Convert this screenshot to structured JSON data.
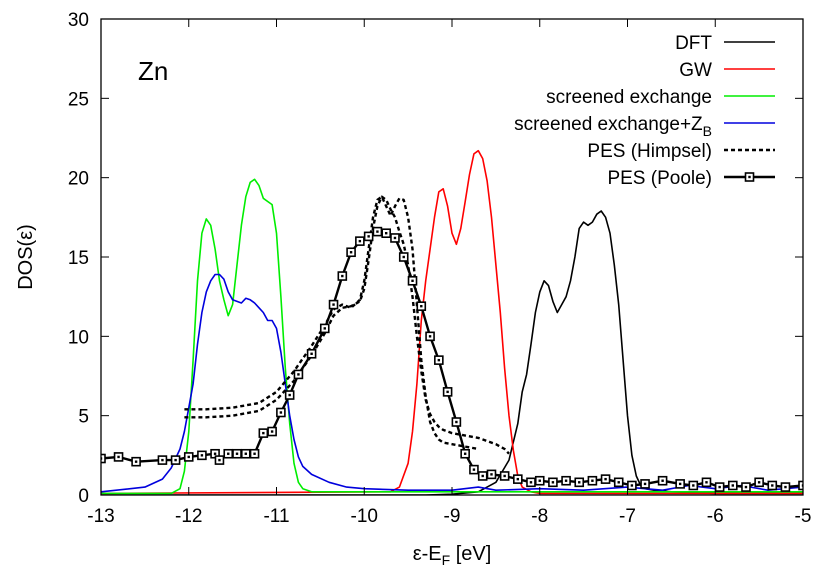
{
  "chart_data": {
    "type": "line",
    "annotation": "Zn",
    "xlabel": "ε-E",
    "xlabel_sub": "F",
    "xlabel_unit": " [eV]",
    "ylabel": "DOS(ε)",
    "xlim": [
      -13,
      -5
    ],
    "ylim": [
      0,
      30
    ],
    "xticks": [
      "-13",
      "-12",
      "-11",
      "-10",
      "-9",
      "-8",
      "-7",
      "-6",
      "-5"
    ],
    "yticks": [
      "0",
      "5",
      "10",
      "15",
      "20",
      "25",
      "30"
    ],
    "grid": false,
    "legend_position": "top-right",
    "series": [
      {
        "name": "DFT",
        "color": "#000000",
        "style": "solid",
        "x": [
          -13,
          -9.3,
          -9.0,
          -8.7,
          -8.5,
          -8.35,
          -8.25,
          -8.2,
          -8.15,
          -8.1,
          -8.05,
          -8.0,
          -7.95,
          -7.9,
          -7.85,
          -7.8,
          -7.75,
          -7.7,
          -7.65,
          -7.6,
          -7.55,
          -7.5,
          -7.45,
          -7.4,
          -7.35,
          -7.3,
          -7.25,
          -7.2,
          -7.15,
          -7.1,
          -7.05,
          -7.0,
          -6.95,
          -6.9,
          -6.85,
          -6.8,
          -6.7,
          -6.5,
          -6.0,
          -5.5,
          -5.0
        ],
        "y": [
          0,
          0,
          0.05,
          0.2,
          0.8,
          2.2,
          4.5,
          6.5,
          7.6,
          9.5,
          11.5,
          12.8,
          13.5,
          13.2,
          12.2,
          11.5,
          12.0,
          12.5,
          13.5,
          15.0,
          16.8,
          17.2,
          17.0,
          17.2,
          17.7,
          17.9,
          17.5,
          16.5,
          14.5,
          12.0,
          8.5,
          5.0,
          2.5,
          1.2,
          0.6,
          0.4,
          0.3,
          0.2,
          0.1,
          0.1,
          0.1
        ]
      },
      {
        "name": "GW",
        "color": "#ff0000",
        "style": "solid",
        "x": [
          -13,
          -9.7,
          -9.6,
          -9.5,
          -9.45,
          -9.4,
          -9.35,
          -9.3,
          -9.25,
          -9.2,
          -9.15,
          -9.1,
          -9.05,
          -9.0,
          -8.95,
          -8.9,
          -8.85,
          -8.8,
          -8.75,
          -8.7,
          -8.65,
          -8.6,
          -8.55,
          -8.5,
          -8.45,
          -8.4,
          -8.35,
          -8.3,
          -8.25,
          -8.2,
          -8.1,
          -8.0,
          -5.0
        ],
        "y": [
          0.1,
          0.2,
          0.5,
          2.0,
          4.0,
          7.0,
          11.0,
          13.5,
          15.5,
          17.5,
          19.1,
          19.3,
          18.2,
          16.5,
          15.8,
          16.8,
          18.5,
          20.2,
          21.5,
          21.7,
          21.2,
          19.8,
          17.5,
          14.5,
          11.5,
          8.0,
          5.0,
          2.8,
          1.2,
          0.5,
          0.2,
          0.1,
          0.1
        ]
      },
      {
        "name": "screened exchange",
        "color": "#00ee00",
        "style": "solid",
        "x": [
          -13,
          -12.2,
          -12.1,
          -12.05,
          -12.0,
          -11.95,
          -11.9,
          -11.85,
          -11.8,
          -11.75,
          -11.7,
          -11.65,
          -11.6,
          -11.55,
          -11.5,
          -11.45,
          -11.4,
          -11.35,
          -11.3,
          -11.25,
          -11.2,
          -11.15,
          -11.1,
          -11.05,
          -11.0,
          -10.95,
          -10.9,
          -10.85,
          -10.8,
          -10.75,
          -10.7,
          -10.6,
          -10.5,
          -5.0
        ],
        "y": [
          0.1,
          0.1,
          0.4,
          1.5,
          4.0,
          8.5,
          13.5,
          16.5,
          17.4,
          17.0,
          15.5,
          13.5,
          12.3,
          11.3,
          12.0,
          14.5,
          17.0,
          18.8,
          19.7,
          19.9,
          19.5,
          18.7,
          18.5,
          18.3,
          16.5,
          12.5,
          8.0,
          4.5,
          2.0,
          0.8,
          0.4,
          0.2,
          0.2,
          0.2
        ]
      },
      {
        "name": "screened exchange+Z",
        "sub": "B",
        "color": "#0000dd",
        "style": "solid",
        "x": [
          -13,
          -12.5,
          -12.3,
          -12.2,
          -12.1,
          -12.05,
          -12.0,
          -11.95,
          -11.9,
          -11.85,
          -11.8,
          -11.75,
          -11.7,
          -11.65,
          -11.6,
          -11.55,
          -11.5,
          -11.45,
          -11.4,
          -11.35,
          -11.3,
          -11.25,
          -11.2,
          -11.15,
          -11.1,
          -11.05,
          -11.0,
          -10.95,
          -10.9,
          -10.85,
          -10.8,
          -10.75,
          -10.7,
          -10.6,
          -10.4,
          -10.2,
          -10.0,
          -9.5,
          -9.0,
          -8.7,
          -8.5,
          -8.0,
          -7.5,
          -7.0,
          -6.6,
          -6.3,
          -6.0,
          -5.7,
          -5.4,
          -5.0
        ],
        "y": [
          0.2,
          0.5,
          1.0,
          1.7,
          2.9,
          4.0,
          5.5,
          7.0,
          9.5,
          11.5,
          12.8,
          13.5,
          13.9,
          13.9,
          13.6,
          12.8,
          12.3,
          12.2,
          12.1,
          12.4,
          12.3,
          12.1,
          11.8,
          11.5,
          11.0,
          11.0,
          10.5,
          9.0,
          7.0,
          5.0,
          3.5,
          2.4,
          1.8,
          1.3,
          0.8,
          0.5,
          0.4,
          0.3,
          0.3,
          0.5,
          0.3,
          0.4,
          0.3,
          0.5,
          0.3,
          0.6,
          0.4,
          0.6,
          0.3,
          0.5
        ]
      },
      {
        "name": "PES (Himpsel)",
        "color": "#000000",
        "style": "dashed",
        "x": [
          -12.05,
          -11.8,
          -11.5,
          -11.2,
          -11.0,
          -10.8,
          -10.6,
          -10.45,
          -10.35,
          -10.25,
          -10.15,
          -10.05,
          -10.0,
          -9.95,
          -9.9,
          -9.85,
          -9.8,
          -9.75,
          -9.7,
          -9.65,
          -9.6,
          -9.55,
          -9.5,
          -9.45,
          -9.4,
          -9.35,
          -9.3,
          -9.25,
          -9.2,
          -9.15,
          -9.1,
          -9.0,
          -8.9,
          -8.8,
          -8.7
        ],
        "y": [
          5.4,
          5.4,
          5.5,
          5.8,
          6.5,
          7.8,
          9.4,
          10.7,
          11.7,
          12.0,
          11.8,
          12.3,
          13.5,
          15.5,
          17.5,
          18.6,
          18.8,
          18.2,
          17.6,
          18.2,
          18.7,
          18.6,
          17.5,
          15.5,
          12.0,
          8.5,
          6.2,
          4.6,
          3.9,
          3.5,
          3.3,
          3.2,
          3.1,
          3.0,
          2.9
        ]
      },
      {
        "name": "PES (Himpsel)",
        "color": "#000000",
        "style": "dashed",
        "legend": false,
        "x": [
          -12.05,
          -11.8,
          -11.5,
          -11.2,
          -11.0,
          -10.8,
          -10.6,
          -10.45,
          -10.35,
          -10.25,
          -10.15,
          -10.05,
          -10.0,
          -9.95,
          -9.9,
          -9.85,
          -9.8,
          -9.75,
          -9.7,
          -9.65,
          -9.6,
          -9.55,
          -9.5,
          -9.45,
          -9.4,
          -9.35,
          -9.3,
          -9.25,
          -9.2,
          -9.15,
          -9.1,
          -9.0,
          -8.9,
          -8.8,
          -8.7,
          -8.6,
          -8.5,
          -8.4,
          -8.35
        ],
        "y": [
          4.9,
          4.9,
          5.0,
          5.3,
          6.0,
          7.2,
          8.8,
          10.2,
          11.3,
          11.8,
          11.9,
          12.2,
          13.0,
          14.8,
          16.8,
          18.2,
          18.8,
          18.6,
          18.0,
          17.5,
          16.6,
          15.8,
          14.5,
          12.5,
          10.0,
          7.8,
          6.0,
          5.1,
          4.6,
          4.3,
          4.1,
          3.9,
          3.8,
          3.7,
          3.6,
          3.4,
          3.2,
          2.9,
          2.6
        ]
      },
      {
        "name": "PES (Poole)",
        "color": "#000000",
        "style": "solid-squares",
        "x": [
          -13.0,
          -12.8,
          -12.6,
          -12.3,
          -12.15,
          -12.0,
          -11.85,
          -11.7,
          -11.65,
          -11.55,
          -11.45,
          -11.35,
          -11.25,
          -11.15,
          -11.05,
          -10.95,
          -10.85,
          -10.75,
          -10.6,
          -10.45,
          -10.35,
          -10.25,
          -10.15,
          -10.05,
          -9.95,
          -9.85,
          -9.75,
          -9.65,
          -9.55,
          -9.45,
          -9.35,
          -9.25,
          -9.15,
          -9.05,
          -8.95,
          -8.85,
          -8.75,
          -8.65,
          -8.55,
          -8.4,
          -8.25,
          -8.1,
          -8.0,
          -7.85,
          -7.7,
          -7.55,
          -7.4,
          -7.25,
          -7.1,
          -6.95,
          -6.8,
          -6.6,
          -6.4,
          -6.25,
          -6.1,
          -5.95,
          -5.8,
          -5.65,
          -5.5,
          -5.35,
          -5.2,
          -5.0
        ],
        "y": [
          2.3,
          2.4,
          2.1,
          2.2,
          2.2,
          2.4,
          2.5,
          2.6,
          2.2,
          2.6,
          2.6,
          2.6,
          2.6,
          3.9,
          4.0,
          5.2,
          6.3,
          7.6,
          8.9,
          10.5,
          12.0,
          13.8,
          15.3,
          16.0,
          16.3,
          16.6,
          16.5,
          16.2,
          15.0,
          13.5,
          11.9,
          10.0,
          8.5,
          6.5,
          4.6,
          2.6,
          1.6,
          1.2,
          1.3,
          1.2,
          1.0,
          0.8,
          0.9,
          0.8,
          0.9,
          0.8,
          0.9,
          1.0,
          0.8,
          0.6,
          0.7,
          0.9,
          0.7,
          0.6,
          0.8,
          0.5,
          0.6,
          0.5,
          0.8,
          0.6,
          0.5,
          0.6
        ]
      }
    ]
  }
}
